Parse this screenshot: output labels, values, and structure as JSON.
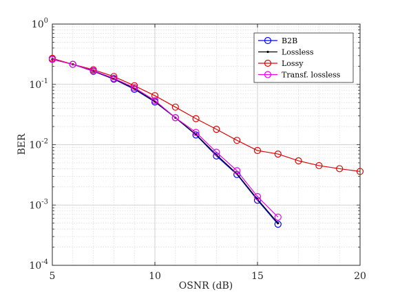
{
  "chart_data": {
    "type": "line",
    "xlabel": "OSNR (dB)",
    "ylabel": "BER",
    "xlim": [
      5,
      20
    ],
    "ylim": [
      0.0001,
      1
    ],
    "y_scale": "log",
    "grid": true,
    "minor_grid": true,
    "legend_position": "top-right",
    "x_ticks": [
      "5",
      "10",
      "15",
      "20"
    ],
    "y_ticks": [
      {
        "base": "10",
        "exp": "-4"
      },
      {
        "base": "10",
        "exp": "-3"
      },
      {
        "base": "10",
        "exp": "-2"
      },
      {
        "base": "10",
        "exp": "-1"
      },
      {
        "base": "10",
        "exp": "0"
      }
    ],
    "series": [
      {
        "name": "B2B",
        "color": "#0000ff",
        "marker": "circle",
        "x": [
          5,
          6,
          7,
          8,
          9,
          10,
          11,
          12,
          13,
          14,
          15,
          16
        ],
        "y": [
          0.26,
          0.215,
          0.165,
          0.122,
          0.083,
          0.051,
          0.028,
          0.0145,
          0.0065,
          0.0032,
          0.0012,
          0.00048
        ]
      },
      {
        "name": "Lossless",
        "color": "#000000",
        "marker": "dot",
        "x": [
          5,
          6,
          7,
          8,
          9,
          10,
          11,
          12,
          13,
          14,
          15,
          16
        ],
        "y": [
          0.26,
          0.215,
          0.167,
          0.124,
          0.085,
          0.052,
          0.028,
          0.0148,
          0.0068,
          0.0033,
          0.00125,
          0.0005
        ]
      },
      {
        "name": "Lossy",
        "color": "#e00000",
        "marker": "circle",
        "x": [
          5,
          6,
          7,
          8,
          9,
          10,
          11,
          12,
          13,
          14,
          15,
          16,
          17,
          18,
          19,
          20
        ],
        "y": [
          0.27,
          0.215,
          0.175,
          0.135,
          0.095,
          0.065,
          0.042,
          0.027,
          0.018,
          0.0118,
          0.008,
          0.007,
          0.0054,
          0.0045,
          0.004,
          0.0036
        ]
      },
      {
        "name": "Transf. lossless",
        "color": "#e800e8",
        "marker": "circle",
        "x": [
          5,
          6,
          7,
          8,
          9,
          10,
          11,
          12,
          13,
          14,
          15,
          16
        ],
        "y": [
          0.26,
          0.215,
          0.168,
          0.126,
          0.088,
          0.054,
          0.028,
          0.016,
          0.0075,
          0.0037,
          0.00138,
          0.00063
        ]
      }
    ]
  }
}
